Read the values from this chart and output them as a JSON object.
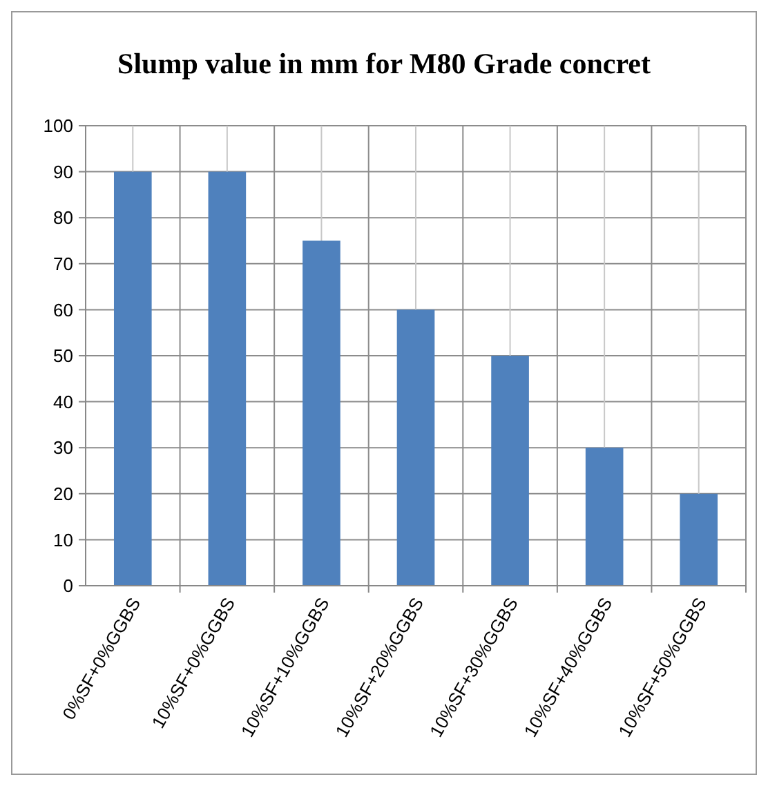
{
  "chart_data": {
    "type": "bar",
    "title": "Slump value in mm for M80 Grade concret",
    "categories": [
      "0%SF+0%GGBS",
      "10%SF+0%GGBS",
      "10%SF+10%GGBS",
      "10%SF+20%GGBS",
      "10%SF+30%GGBS",
      "10%SF+40%GGBS",
      "10%SF+50%GGBS"
    ],
    "values": [
      90,
      90,
      75,
      60,
      50,
      30,
      20
    ],
    "color": "#4f81bd",
    "ylim": [
      0,
      100
    ],
    "yticks": [
      0,
      10,
      20,
      30,
      40,
      50,
      60,
      70,
      80,
      90,
      100
    ],
    "grid": true
  }
}
